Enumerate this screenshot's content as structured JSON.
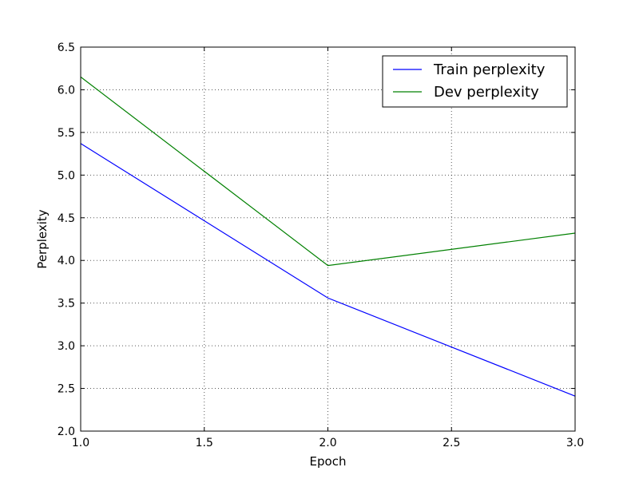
{
  "chart_data": {
    "type": "line",
    "title": "",
    "xlabel": "Epoch",
    "ylabel": "Perplexity",
    "xlim": [
      1.0,
      3.0
    ],
    "ylim": [
      2.0,
      6.5
    ],
    "xticks": [
      "1.0",
      "1.5",
      "2.0",
      "2.5",
      "3.0"
    ],
    "yticks": [
      "2.0",
      "2.5",
      "3.0",
      "3.5",
      "4.0",
      "4.5",
      "5.0",
      "5.5",
      "6.0",
      "6.5"
    ],
    "grid": true,
    "legend": "top-right",
    "series": [
      {
        "name": "Train perplexity",
        "color": "#0000ff",
        "x": [
          1.0,
          2.0,
          3.0
        ],
        "y": [
          5.37,
          3.56,
          2.41
        ]
      },
      {
        "name": "Dev perplexity",
        "color": "#008000",
        "x": [
          1.0,
          2.0,
          3.0
        ],
        "y": [
          6.15,
          3.94,
          4.32
        ]
      }
    ]
  }
}
